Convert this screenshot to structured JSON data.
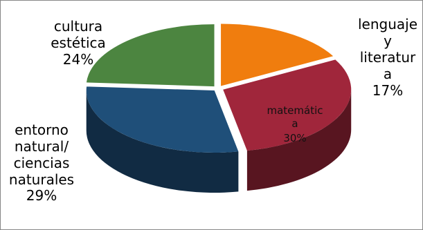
{
  "chart_data": {
    "type": "pie",
    "style": "3d-exploded",
    "slices": [
      {
        "label_lines": [
          "lenguaje",
          "y",
          "literatur",
          "a"
        ],
        "pct_label": "17%",
        "value": 17,
        "color": "#F07D0E"
      },
      {
        "label_lines": [
          "matemátic",
          "a"
        ],
        "pct_label": "30%",
        "value": 30,
        "color": "#A0263B"
      },
      {
        "label_lines": [
          "entorno",
          "natural/",
          "ciencias",
          "naturales"
        ],
        "pct_label": "29%",
        "value": 29,
        "color": "#1F4F79"
      },
      {
        "label_lines": [
          "cultura",
          "estética"
        ],
        "pct_label": "24%",
        "value": 24,
        "color": "#4C8540"
      }
    ]
  }
}
